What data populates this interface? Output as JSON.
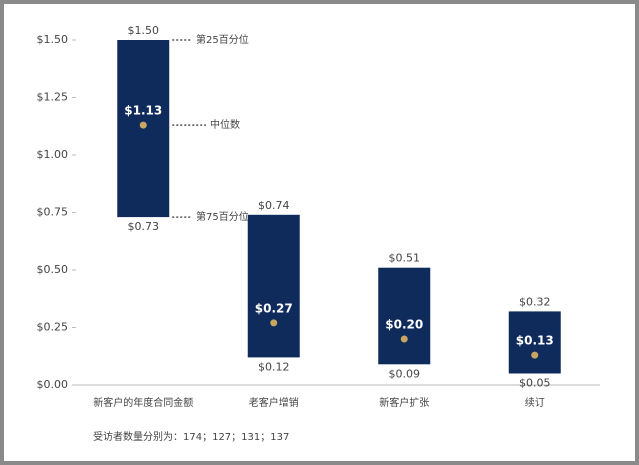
{
  "chart_data": {
    "type": "range-bar",
    "categories": [
      "新客户的年度合同金额",
      "老客户增销",
      "新客户扩张",
      "续订"
    ],
    "high": {
      "values": [
        1.5,
        0.74,
        0.51,
        0.32
      ],
      "value_labels": [
        "$1.50",
        "$0.74",
        "$0.51",
        "$0.32"
      ]
    },
    "low": {
      "values": [
        0.73,
        0.12,
        0.09,
        0.05
      ],
      "value_labels": [
        "$0.73",
        "$0.12",
        "$0.09",
        "$0.05"
      ]
    },
    "median": {
      "values": [
        1.13,
        0.27,
        0.2,
        0.13
      ],
      "value_labels": [
        "$1.13",
        "$0.27",
        "$0.20",
        "$0.13"
      ]
    },
    "bar_color": "#0f2b5b",
    "median_color": "#c8a561",
    "ylim": [
      0,
      1.5
    ],
    "yticks": [
      {
        "value": 0,
        "label": "$0.00"
      },
      {
        "value": 0.25,
        "label": "$0.25"
      },
      {
        "value": 0.5,
        "label": "$0.50"
      },
      {
        "value": 0.75,
        "label": "$0.75"
      },
      {
        "value": 1,
        "label": "$1.00"
      },
      {
        "value": 1.25,
        "label": "$1.25"
      },
      {
        "value": 1.5,
        "label": "$1.50"
      }
    ],
    "grid": false,
    "annotations": {
      "high": "第25百分位",
      "median": "中位数",
      "low": "第75百分位"
    },
    "footnote": "受访者数量分别为：174；127；131；137"
  }
}
